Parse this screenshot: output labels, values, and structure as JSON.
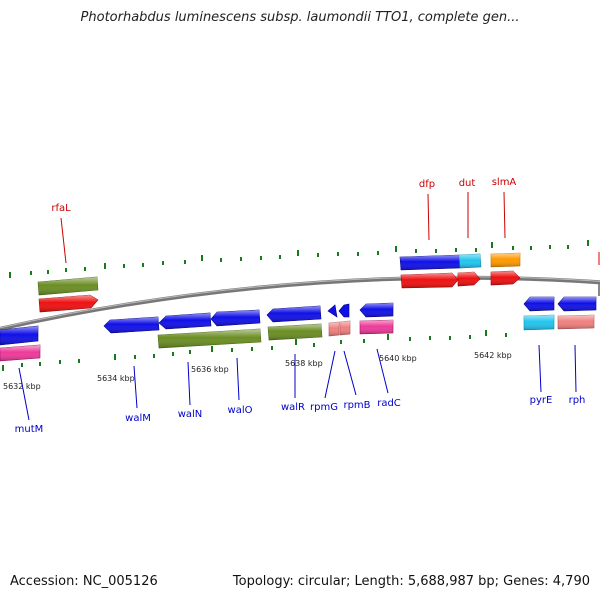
{
  "title": "Photorhabdus luminescens subsp. laumondii TTO1, complete gen...",
  "footer": {
    "accession": "Accession: NC_005126",
    "summary": "Topology: circular; Length: 5,688,987 bp; Genes: 4,790"
  },
  "colors": {
    "blue": "#1010e8",
    "red": "#ee1111",
    "olive": "#6b8e23",
    "cyan": "#22c5ee",
    "orange": "#ff9900",
    "pink": "#ee3a9a",
    "salmon": "#f08080",
    "forward_label": "#cc0000",
    "reverse_label": "#0000cc",
    "tick": "#1a7a1a",
    "backbone": "#888888"
  },
  "scale": {
    "unit": "kbp",
    "ticks": [
      "5632 kbp",
      "5634 kbp",
      "5636 kbp",
      "5638 kbp",
      "5640 kbp",
      "5642 kbp"
    ]
  },
  "forward_labels": [
    "rfaL",
    "dfp",
    "dut",
    "slmA"
  ],
  "reverse_labels": [
    "mutM",
    "walM",
    "walN",
    "walO",
    "walR",
    "rpmG",
    "rpmB",
    "radC",
    "pyrE",
    "rph"
  ]
}
